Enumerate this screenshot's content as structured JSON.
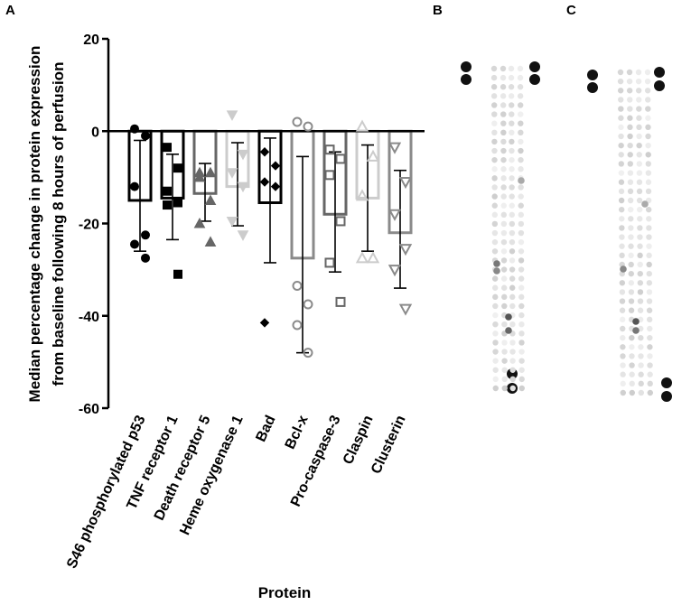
{
  "panels": {
    "a": "A",
    "b": "B",
    "c": "C"
  },
  "colors": {
    "black": "#000000",
    "dark_gray": "#666666",
    "mid_gray": "#8a8a8a",
    "light_gray": "#cccccc"
  },
  "chart_data": {
    "type": "bar",
    "title": "",
    "xlabel": "Protein",
    "ylabel_line1": "Median percentage change in protein expression",
    "ylabel_line2": "from baseline following 8 hours of perfusion",
    "ylim": [
      -60,
      20
    ],
    "yticks": [
      20,
      0,
      -20,
      -40,
      -60
    ],
    "categories": [
      "S46 phosphorylated p53",
      "TNF receptor 1",
      "Death receptor 5",
      "Heme oxygenase 1",
      "Bad",
      "Bcl-x",
      "Pro-caspase-3",
      "Claspin",
      "Clusterin"
    ],
    "medians": [
      -15,
      -14.5,
      -13.5,
      -12,
      -15.5,
      -27.5,
      -18,
      -14.5,
      -22
    ],
    "error_low": [
      -26,
      -23.5,
      -19.5,
      -20.5,
      -28.5,
      -48,
      -30.5,
      -26,
      -34
    ],
    "error_high": [
      -2,
      -5,
      -7,
      -2.5,
      -1.5,
      -5.5,
      -4.5,
      -3,
      -8.5
    ],
    "points": [
      [
        0.5,
        -1,
        -12,
        -22.5,
        -24.5,
        -27.5
      ],
      [
        -3.5,
        -8,
        -13,
        -15.5,
        -16,
        -31
      ],
      [
        -9,
        -9,
        -10,
        -15,
        -20,
        -24
      ],
      [
        3.5,
        -5,
        -9,
        -12,
        -19.5,
        -22.5
      ],
      [
        -4.5,
        -7.5,
        -11,
        -12,
        -41.5
      ],
      [
        2,
        1,
        -33.5,
        -37.5,
        -42,
        -48
      ],
      [
        -4,
        -6,
        -9.5,
        -19.5,
        -28.5,
        -37
      ],
      [
        1,
        -5.5,
        -14,
        -27.5,
        -27.5
      ],
      [
        -3.5,
        -11,
        -18,
        -25.5,
        -30,
        -38.5
      ]
    ],
    "markers": [
      "circle",
      "square",
      "triangle-up",
      "triangle-down",
      "diamond",
      "circle-open",
      "square-open",
      "triangle-up-open",
      "triangle-down-open"
    ],
    "series_colors": [
      "#000000",
      "#000000",
      "#666666",
      "#cccccc",
      "#000000",
      "#8a8a8a",
      "#666666",
      "#cccccc",
      "#8a8a8a"
    ]
  }
}
